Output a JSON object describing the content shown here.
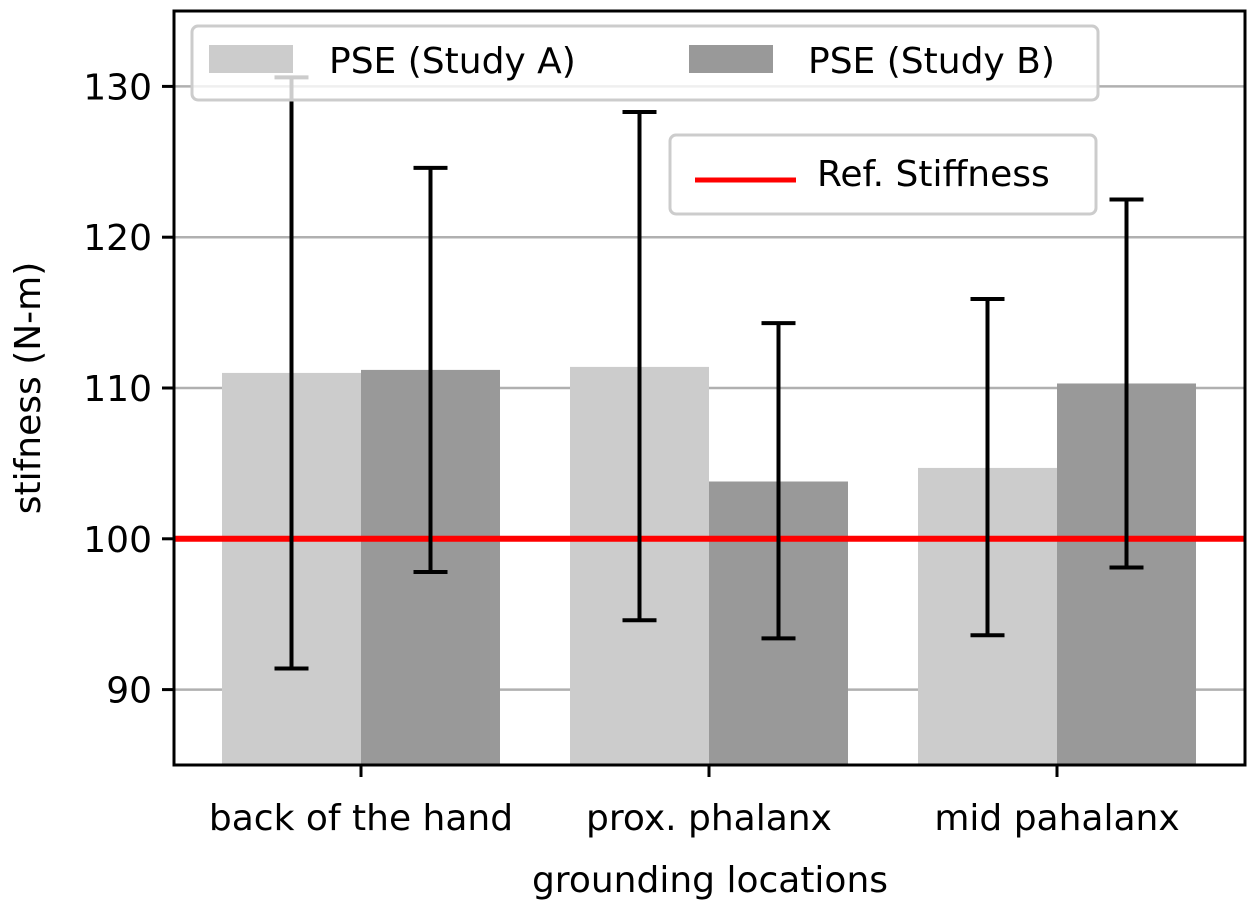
{
  "chart_data": {
    "type": "bar",
    "categories": [
      "back of the hand",
      "prox. phalanx",
      "mid pahalanx"
    ],
    "series": [
      {
        "name": "PSE (Study A)",
        "color": "#cccccc",
        "values": [
          111.0,
          111.4,
          104.7
        ],
        "error_low": [
          91.4,
          94.6,
          93.6
        ],
        "error_high": [
          130.6,
          128.3,
          115.9
        ]
      },
      {
        "name": "PSE (Study B)",
        "color": "#999999",
        "values": [
          111.2,
          103.8,
          110.3
        ],
        "error_low": [
          97.8,
          93.4,
          98.1
        ],
        "error_high": [
          124.6,
          114.3,
          122.5
        ]
      }
    ],
    "reference_line": {
      "name": "Ref. Stiffness",
      "value": 100,
      "color": "#ff0000"
    },
    "xlabel": "grounding locations",
    "ylabel": "stifness (N-m)",
    "ylim": [
      85,
      135
    ],
    "yticks": [
      90,
      100,
      110,
      120,
      130
    ],
    "grid": "horizontal",
    "legend_placement": "top"
  }
}
